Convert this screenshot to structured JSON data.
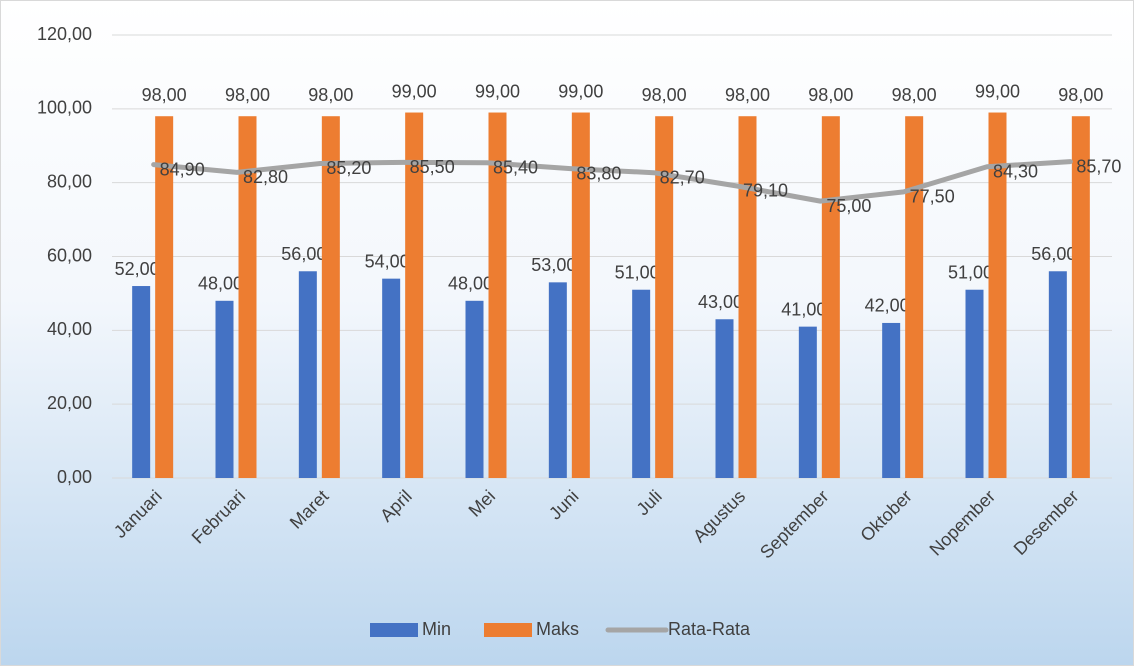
{
  "chart_data": {
    "type": "bar",
    "categories": [
      "Januari",
      "Februari",
      "Maret",
      "April",
      "Mei",
      "Juni",
      "Juli",
      "Agustus",
      "September",
      "Oktober",
      "Nopember",
      "Desember"
    ],
    "series": [
      {
        "name": "Min",
        "color": "#4472c4",
        "values": [
          52,
          48,
          56,
          54,
          48,
          53,
          51,
          43,
          41,
          42,
          51,
          56
        ],
        "value_labels": [
          "52,00",
          "48,00",
          "56,00",
          "54,00",
          "48,00",
          "53,00",
          "51,00",
          "43,00",
          "41,00",
          "42,00",
          "51,00",
          "56,00"
        ]
      },
      {
        "name": "Maks",
        "color": "#ed7d31",
        "values": [
          98,
          98,
          98,
          99,
          99,
          99,
          98,
          98,
          98,
          98,
          99,
          98
        ],
        "value_labels": [
          "98,00",
          "98,00",
          "98,00",
          "99,00",
          "99,00",
          "99,00",
          "98,00",
          "98,00",
          "98,00",
          "98,00",
          "99,00",
          "98,00"
        ]
      },
      {
        "name": "Rata-Rata",
        "color": "#a5a5a5",
        "type": "line",
        "values": [
          84.9,
          82.8,
          85.2,
          85.5,
          85.4,
          83.8,
          82.7,
          79.1,
          75.0,
          77.5,
          84.3,
          85.7
        ],
        "value_labels": [
          "84,90",
          "82,80",
          "85,20",
          "85,50",
          "85,40",
          "83,80",
          "82,70",
          "79,10",
          "75,00",
          "77,50",
          "84,30",
          "85,70"
        ]
      }
    ],
    "ylim": [
      0,
      120
    ],
    "yticks": [
      {
        "value": 0,
        "label": "0,00"
      },
      {
        "value": 20,
        "label": "20,00"
      },
      {
        "value": 40,
        "label": "40,00"
      },
      {
        "value": 60,
        "label": "60,00"
      },
      {
        "value": 80,
        "label": "80,00"
      },
      {
        "value": 100,
        "label": "100,00"
      },
      {
        "value": 120,
        "label": "120,00"
      }
    ],
    "grid": true,
    "legend": "bottom"
  }
}
